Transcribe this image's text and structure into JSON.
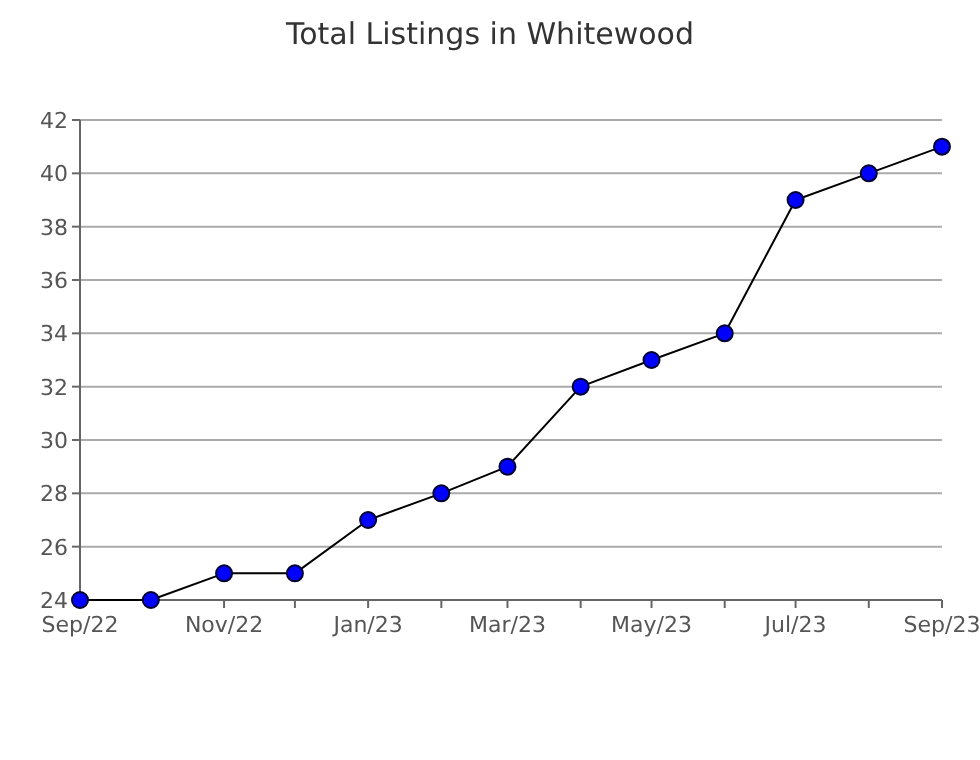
{
  "chart_data": {
    "type": "line",
    "title": "Total Listings in Whitewood",
    "x": [
      "2022-09",
      "2022-10",
      "2022-11",
      "2022-12",
      "2023-01",
      "2023-02",
      "2023-03",
      "2023-04",
      "2023-05",
      "2023-06",
      "2023-07",
      "2023-08",
      "2023-09"
    ],
    "series": [
      {
        "color": "#0000ff",
        "values": [
          24,
          24,
          25,
          25,
          27,
          28,
          29,
          32,
          33,
          34,
          39,
          40,
          41
        ]
      }
    ],
    "xlim": [
      "2022-09",
      "2023-09"
    ],
    "xticks": [
      {
        "value": "2022-09",
        "label": "Sep/22"
      },
      {
        "value": "2022-10",
        "label": null
      },
      {
        "value": "2022-11",
        "label": "Nov/22"
      },
      {
        "value": "2022-12",
        "label": null
      },
      {
        "value": "2023-01",
        "label": "Jan/23"
      },
      {
        "value": "2023-02",
        "label": null
      },
      {
        "value": "2023-03",
        "label": "Mar/23"
      },
      {
        "value": "2023-04",
        "label": null
      },
      {
        "value": "2023-05",
        "label": "May/23"
      },
      {
        "value": "2023-06",
        "label": null
      },
      {
        "value": "2023-07",
        "label": "Jul/23"
      },
      {
        "value": "2023-08",
        "label": null
      },
      {
        "value": "2023-09",
        "label": "Sep/23"
      }
    ],
    "ylim": [
      24,
      42
    ],
    "yticks": [
      24,
      26,
      28,
      30,
      32,
      34,
      36,
      38,
      40,
      42
    ],
    "grid": "y",
    "marker": "circle",
    "line_style": "solid"
  }
}
